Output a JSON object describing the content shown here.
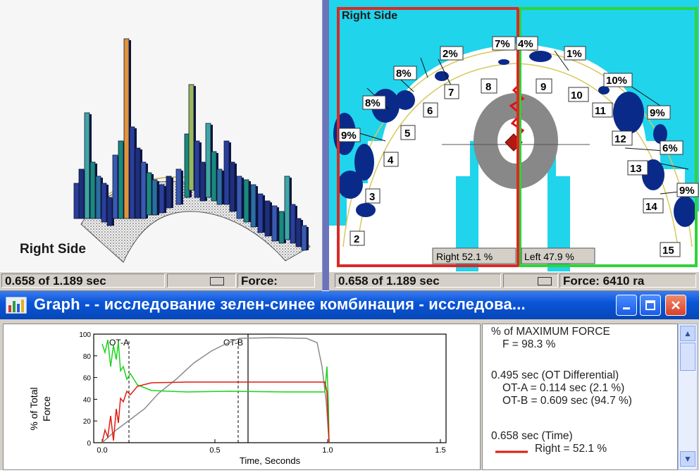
{
  "left_panel": {
    "side_label": "Right Side",
    "status": {
      "time": "0.658 of 1.189 sec",
      "force": "Force:"
    }
  },
  "right_panel": {
    "side_label": "Right Side",
    "status": {
      "time": "0.658 of 1.189 sec",
      "force": "Force: 6410 ra"
    },
    "teeth": [
      "2",
      "3",
      "4",
      "5",
      "6",
      "7",
      "8",
      "9",
      "10",
      "11",
      "12",
      "13",
      "14",
      "15"
    ],
    "percents": [
      "9%",
      "8%",
      "8%",
      "2%",
      "7%",
      "4%",
      "1%",
      "10%",
      "9%",
      "6%",
      "9%"
    ],
    "right_total": "Right 52.1 %",
    "left_total": "Left 47.9 %"
  },
  "graph_window": {
    "title": "Graph - - исследование зелен-синее комбинация - исследова...",
    "plot": {
      "ylabel_line1": "% of Total",
      "ylabel_line2": "Force",
      "xlabel": "Time, Seconds",
      "yticks": [
        "100",
        "80",
        "60",
        "40",
        "20",
        "0"
      ],
      "xticks": [
        "0.0",
        "0.5",
        "1.0",
        "1.5"
      ],
      "marker_a": "OT-A",
      "marker_b": "OT-B"
    },
    "info": {
      "l1": "% of MAXIMUM FORCE",
      "l2": "F = 98.3 %",
      "l3": "0.495 sec (OT Differential)",
      "l4": "OT-A = 0.114 sec (2.1 %)",
      "l5": "OT-B = 0.609 sec (94.7 %)",
      "l6": "0.658 sec (Time)",
      "l7": "Right = 52.1 %"
    }
  },
  "colors": {
    "right_box": "#d82a26",
    "left_box": "#2fd33a",
    "arch_bg": "#20d4ec",
    "contact": "#0a2a8a",
    "titlebar": "#0a55d8"
  }
}
